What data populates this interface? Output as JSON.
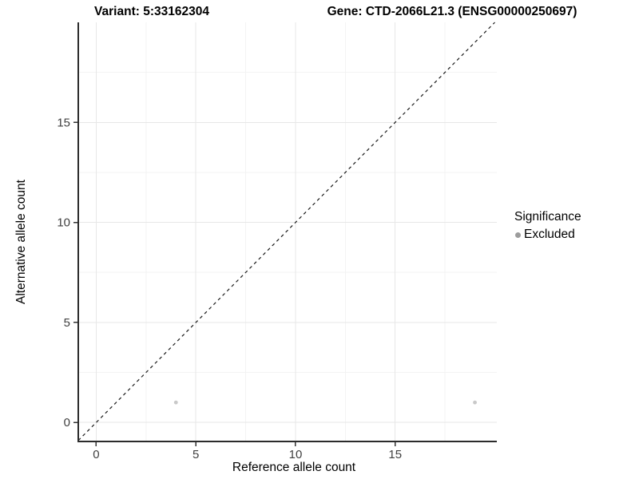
{
  "titles": {
    "left": "Variant: 5:33162304",
    "right": "Gene: CTD-2066L21.3 (ENSG00000250697)"
  },
  "chart_data": {
    "type": "scatter",
    "xlabel": "Reference allele count",
    "ylabel": "Alternative allele count",
    "xlim": [
      -0.9,
      20.1
    ],
    "ylim": [
      -0.95,
      20.0
    ],
    "xticks": [
      0,
      5,
      10,
      15
    ],
    "yticks": [
      0,
      5,
      10,
      15
    ],
    "minor_xticks": [
      2.5,
      7.5,
      12.5,
      17.5
    ],
    "minor_yticks": [
      2.5,
      7.5,
      12.5,
      17.5
    ],
    "grid": true,
    "series": [
      {
        "name": "Excluded",
        "color": "#c9c9c9",
        "point_radius": 2.4,
        "points": [
          {
            "x": 4,
            "y": 1
          },
          {
            "x": 19,
            "y": 1
          }
        ]
      }
    ],
    "identity_line": {
      "style": "dashed",
      "from": -0.9,
      "to": 20.0,
      "color": "#1a1a1a"
    },
    "legend": {
      "title": "Significance",
      "position": "right",
      "entries": [
        {
          "label": "Excluded",
          "color": "#9c9c9c"
        }
      ]
    }
  },
  "colors": {
    "grid_major": "#e7e7e7",
    "grid_minor": "#f3f3f3",
    "axis_line": "#2b2b2b",
    "tick_mark": "#333333",
    "tick_label": "#404040",
    "background": "#ffffff"
  }
}
